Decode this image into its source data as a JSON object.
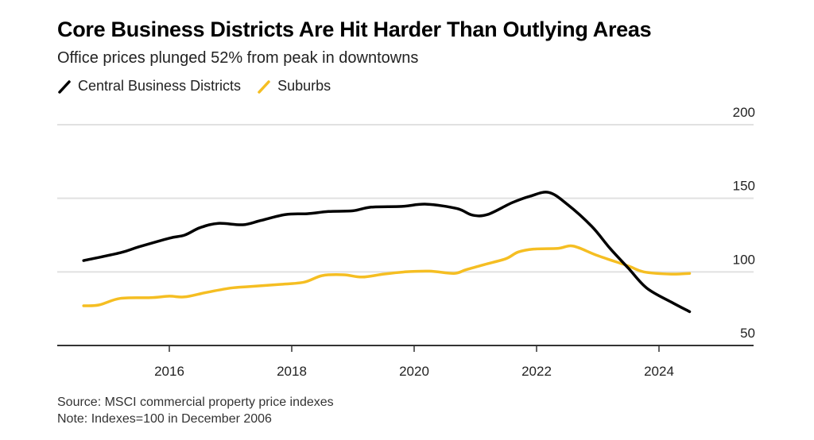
{
  "chart_data": {
    "type": "line",
    "title": "Core Business Districts Are Hit Harder Than Outlying Areas",
    "subtitle": "Office prices plunged 52% from peak in downtowns",
    "xlabel": "",
    "ylabel": "",
    "xlim": [
      2014.5,
      2025.5
    ],
    "ylim": [
      50,
      200
    ],
    "y_ticks": [
      200,
      150,
      100,
      50
    ],
    "x_ticks": [
      2016,
      2018,
      2020,
      2022,
      2024
    ],
    "y_axis_position": "right",
    "grid": true,
    "legend_position": "top-left",
    "series": [
      {
        "name": "Central Business Districts",
        "color": "#000000",
        "x": [
          2014.6,
          2015.2,
          2015.5,
          2016.0,
          2016.25,
          2016.5,
          2016.8,
          2017.2,
          2017.5,
          2017.9,
          2018.25,
          2018.6,
          2019.0,
          2019.3,
          2019.8,
          2020.2,
          2020.7,
          2020.95,
          2021.2,
          2021.6,
          2021.9,
          2022.2,
          2022.5,
          2022.9,
          2023.2,
          2023.5,
          2023.8,
          2024.2,
          2024.5
        ],
        "values": [
          107.7,
          113,
          117,
          122.9,
          125,
          130,
          133,
          132,
          135,
          139,
          139.5,
          141,
          141.5,
          144,
          144.5,
          146,
          143,
          138.6,
          139,
          147,
          151.5,
          154,
          146,
          131,
          116,
          102.5,
          89,
          79.5,
          73
        ]
      },
      {
        "name": "Suburbs",
        "color": "#f5be22",
        "x": [
          2014.6,
          2014.85,
          2015.2,
          2015.7,
          2016.0,
          2016.25,
          2016.6,
          2017.0,
          2017.3,
          2017.8,
          2018.2,
          2018.5,
          2018.85,
          2019.15,
          2019.5,
          2019.85,
          2020.25,
          2020.65,
          2020.85,
          2021.15,
          2021.5,
          2021.7,
          2021.95,
          2022.35,
          2022.6,
          2023.0,
          2023.5,
          2023.75,
          2024.2,
          2024.5
        ],
        "values": [
          77,
          77.5,
          82,
          82.5,
          83.5,
          83,
          86,
          89,
          90,
          91.5,
          93,
          97.5,
          98,
          96.5,
          98.5,
          100,
          100.5,
          99,
          101.5,
          105,
          109,
          113.5,
          115.5,
          116,
          117.5,
          111,
          104,
          100,
          98.5,
          99
        ]
      }
    ]
  },
  "header": {
    "title": "Core Business Districts Are Hit Harder Than Outlying Areas",
    "subtitle": "Office prices plunged 52% from peak in downtowns"
  },
  "legend": {
    "items": [
      {
        "label": "Central Business Districts",
        "color": "#000000"
      },
      {
        "label": "Suburbs",
        "color": "#f5be22"
      }
    ]
  },
  "footer": {
    "source": "Source: MSCI commercial property price indexes",
    "note": "Note: Indexes=100 in December 2006"
  }
}
